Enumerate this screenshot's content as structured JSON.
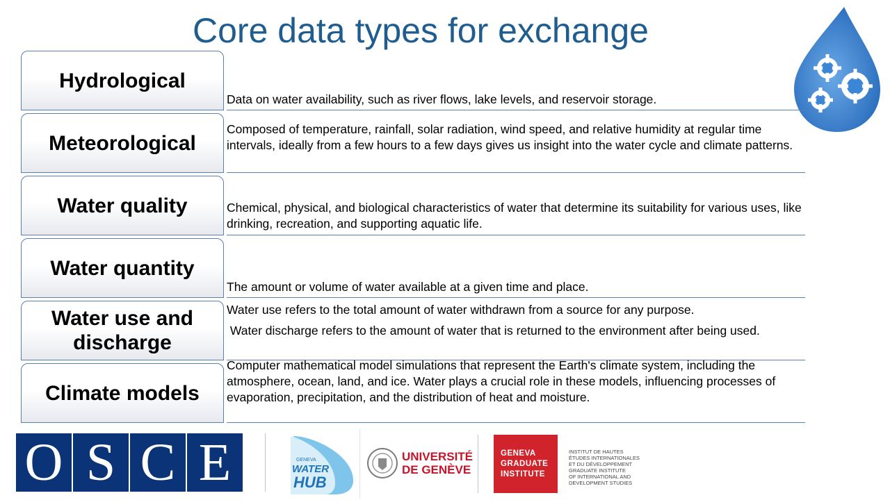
{
  "slide": {
    "title": "Core data types for exchange"
  },
  "rows": [
    {
      "label": "Hydrological",
      "lines": [
        "Data on water availability, such as river flows, lake levels, and reservoir storage."
      ]
    },
    {
      "label": "Meteorological",
      "lines": [
        "Composed of temperature, rainfall, solar radiation, wind speed, and relative humidity at regular time intervals, ideally from a few hours to a few days gives us insight into the water cycle and climate patterns."
      ]
    },
    {
      "label": "Water quality",
      "lines": [
        "Chemical, physical, and biological characteristics of water that determine its suitability for various uses, like drinking, recreation, and supporting aquatic life."
      ]
    },
    {
      "label": "Water quantity",
      "lines": [
        "The amount or volume of water available at a given time and place."
      ]
    },
    {
      "label": "Water use and discharge",
      "lines": [
        "Water use refers to the total amount of water withdrawn from a source for any purpose.",
        " Water discharge refers to the amount of water that is returned to the environment after being used."
      ]
    },
    {
      "label": "Climate models",
      "lines": [
        "Computer mathematical model simulations that represent the Earth's climate system, including the atmosphere, ocean, land, and ice. Water plays a crucial role in these models, influencing processes of evaporation, precipitation, and the distribution of heat and moisture."
      ]
    }
  ],
  "logos": {
    "osce_letters": [
      "O",
      "S",
      "C",
      "E"
    ],
    "water_hub_small": "GENEVA",
    "water_hub_line1": "WATER",
    "water_hub_line2": "HUB",
    "unige_line1": "UNIVERSITÉ",
    "unige_line2": "DE GENÈVE",
    "ggi_line1": "GENEVA",
    "ggi_line2": "GRADUATE",
    "ggi_line3": "INSTITUTE",
    "ggi_fr_1": "INSTITUT DE HAUTES",
    "ggi_fr_2": "ÉTUDES INTERNATIONALES",
    "ggi_fr_3": "ET DU DÉVELOPPEMENT",
    "ggi_en_1": "GRADUATE INSTITUTE",
    "ggi_en_2": "OF INTERNATIONAL AND",
    "ggi_en_3": "DEVELOPMENT STUDIES"
  },
  "colors": {
    "title": "#1f5c8f",
    "border": "#5b7fb0",
    "osce_blue": "#0b3478",
    "unige_red": "#c6142a",
    "ggi_red": "#d1232b",
    "drop_blue": "#2e78c7"
  }
}
